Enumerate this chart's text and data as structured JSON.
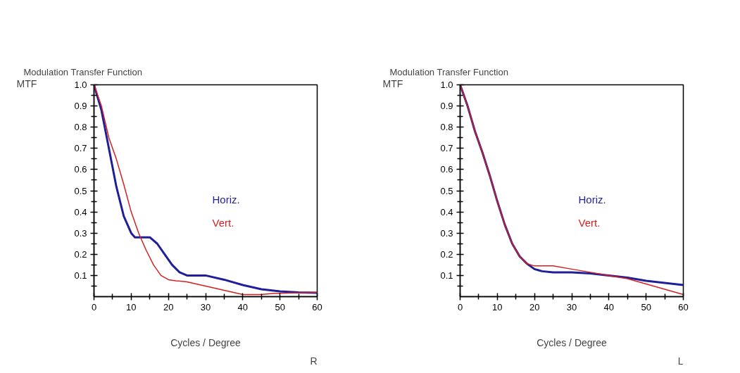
{
  "chart_data": [
    {
      "type": "line",
      "title": "Modulation Transfer Function",
      "xlabel": "Cycles / Degree",
      "ylabel": "MTF",
      "annotations": [
        "R"
      ],
      "xlim": [
        0,
        60
      ],
      "ylim": [
        0,
        1.0
      ],
      "xticks": [
        0,
        {
          "value": 5,
          "label": null
        },
        10,
        {
          "value": 15,
          "label": null
        },
        20,
        {
          "value": 25,
          "label": null
        },
        30,
        {
          "value": 35,
          "label": null
        },
        40,
        {
          "value": 45,
          "label": null
        },
        50,
        {
          "value": 55,
          "label": null
        },
        60
      ],
      "yticks": [
        {
          "value": 0.05,
          "label": null
        },
        0.1,
        {
          "value": 0.15,
          "label": null
        },
        0.2,
        {
          "value": 0.25,
          "label": null
        },
        0.3,
        {
          "value": 0.35,
          "label": null
        },
        0.4,
        {
          "value": 0.45,
          "label": null
        },
        0.5,
        {
          "value": 0.55,
          "label": null
        },
        0.6,
        {
          "value": 0.65,
          "label": null
        },
        0.7,
        {
          "value": 0.75,
          "label": null
        },
        0.8,
        {
          "value": 0.85,
          "label": null
        },
        0.9,
        {
          "value": 0.95,
          "label": null
        },
        {
          "value": 1.0,
          "label": "1.0"
        }
      ],
      "grid": false,
      "series": [
        {
          "name": "Horiz.",
          "color": "#1f1f9a",
          "x": [
            0,
            2,
            4,
            6,
            8,
            10,
            11,
            13,
            15,
            17,
            19,
            21,
            23,
            25,
            30,
            35,
            40,
            45,
            50,
            55,
            60
          ],
          "values": [
            1.0,
            0.88,
            0.7,
            0.52,
            0.38,
            0.3,
            0.28,
            0.28,
            0.28,
            0.25,
            0.2,
            0.15,
            0.115,
            0.1,
            0.1,
            0.08,
            0.055,
            0.035,
            0.025,
            0.02,
            0.018
          ]
        },
        {
          "name": "Vert.",
          "color": "#d42020",
          "x": [
            0,
            2,
            4,
            6,
            8,
            10,
            12,
            14,
            16,
            18,
            20,
            22,
            25,
            30,
            35,
            40,
            45,
            48,
            55,
            60
          ],
          "values": [
            1.0,
            0.9,
            0.75,
            0.65,
            0.53,
            0.4,
            0.3,
            0.22,
            0.15,
            0.1,
            0.08,
            0.075,
            0.07,
            0.05,
            0.03,
            0.01,
            0.01,
            0.015,
            0.018,
            0.02
          ]
        }
      ]
    },
    {
      "type": "line",
      "title": "Modulation Transfer Function",
      "xlabel": "Cycles / Degree",
      "ylabel": "MTF",
      "annotations": [
        "L"
      ],
      "xlim": [
        0,
        60
      ],
      "ylim": [
        0,
        1.0
      ],
      "xticks": [
        0,
        {
          "value": 5,
          "label": null
        },
        10,
        {
          "value": 15,
          "label": null
        },
        20,
        {
          "value": 25,
          "label": null
        },
        30,
        {
          "value": 35,
          "label": null
        },
        40,
        {
          "value": 45,
          "label": null
        },
        50,
        {
          "value": 55,
          "label": null
        },
        60
      ],
      "yticks": [
        {
          "value": 0.05,
          "label": null
        },
        0.1,
        {
          "value": 0.15,
          "label": null
        },
        0.2,
        {
          "value": 0.25,
          "label": null
        },
        0.3,
        {
          "value": 0.35,
          "label": null
        },
        0.4,
        {
          "value": 0.45,
          "label": null
        },
        0.5,
        {
          "value": 0.55,
          "label": null
        },
        0.6,
        {
          "value": 0.65,
          "label": null
        },
        0.7,
        {
          "value": 0.75,
          "label": null
        },
        0.8,
        {
          "value": 0.85,
          "label": null
        },
        0.9,
        {
          "value": 0.95,
          "label": null
        },
        {
          "value": 1.0,
          "label": "1.0"
        }
      ],
      "grid": false,
      "series": [
        {
          "name": "Horiz.",
          "color": "#1f1f9a",
          "x": [
            0,
            2,
            4,
            6,
            8,
            10,
            12,
            14,
            16,
            18,
            20,
            22,
            25,
            30,
            35,
            40,
            45,
            50,
            55,
            60
          ],
          "values": [
            1.0,
            0.9,
            0.78,
            0.68,
            0.57,
            0.45,
            0.34,
            0.25,
            0.19,
            0.155,
            0.13,
            0.12,
            0.115,
            0.115,
            0.11,
            0.1,
            0.09,
            0.075,
            0.065,
            0.055
          ]
        },
        {
          "name": "Vert.",
          "color": "#d42020",
          "x": [
            0,
            2,
            4,
            6,
            8,
            10,
            12,
            14,
            16,
            18,
            20,
            25,
            30,
            35,
            40,
            45,
            50,
            55,
            60
          ],
          "values": [
            1.0,
            0.9,
            0.78,
            0.68,
            0.57,
            0.45,
            0.34,
            0.25,
            0.19,
            0.155,
            0.145,
            0.145,
            0.13,
            0.115,
            0.1,
            0.085,
            0.06,
            0.035,
            0.01
          ]
        }
      ]
    }
  ]
}
